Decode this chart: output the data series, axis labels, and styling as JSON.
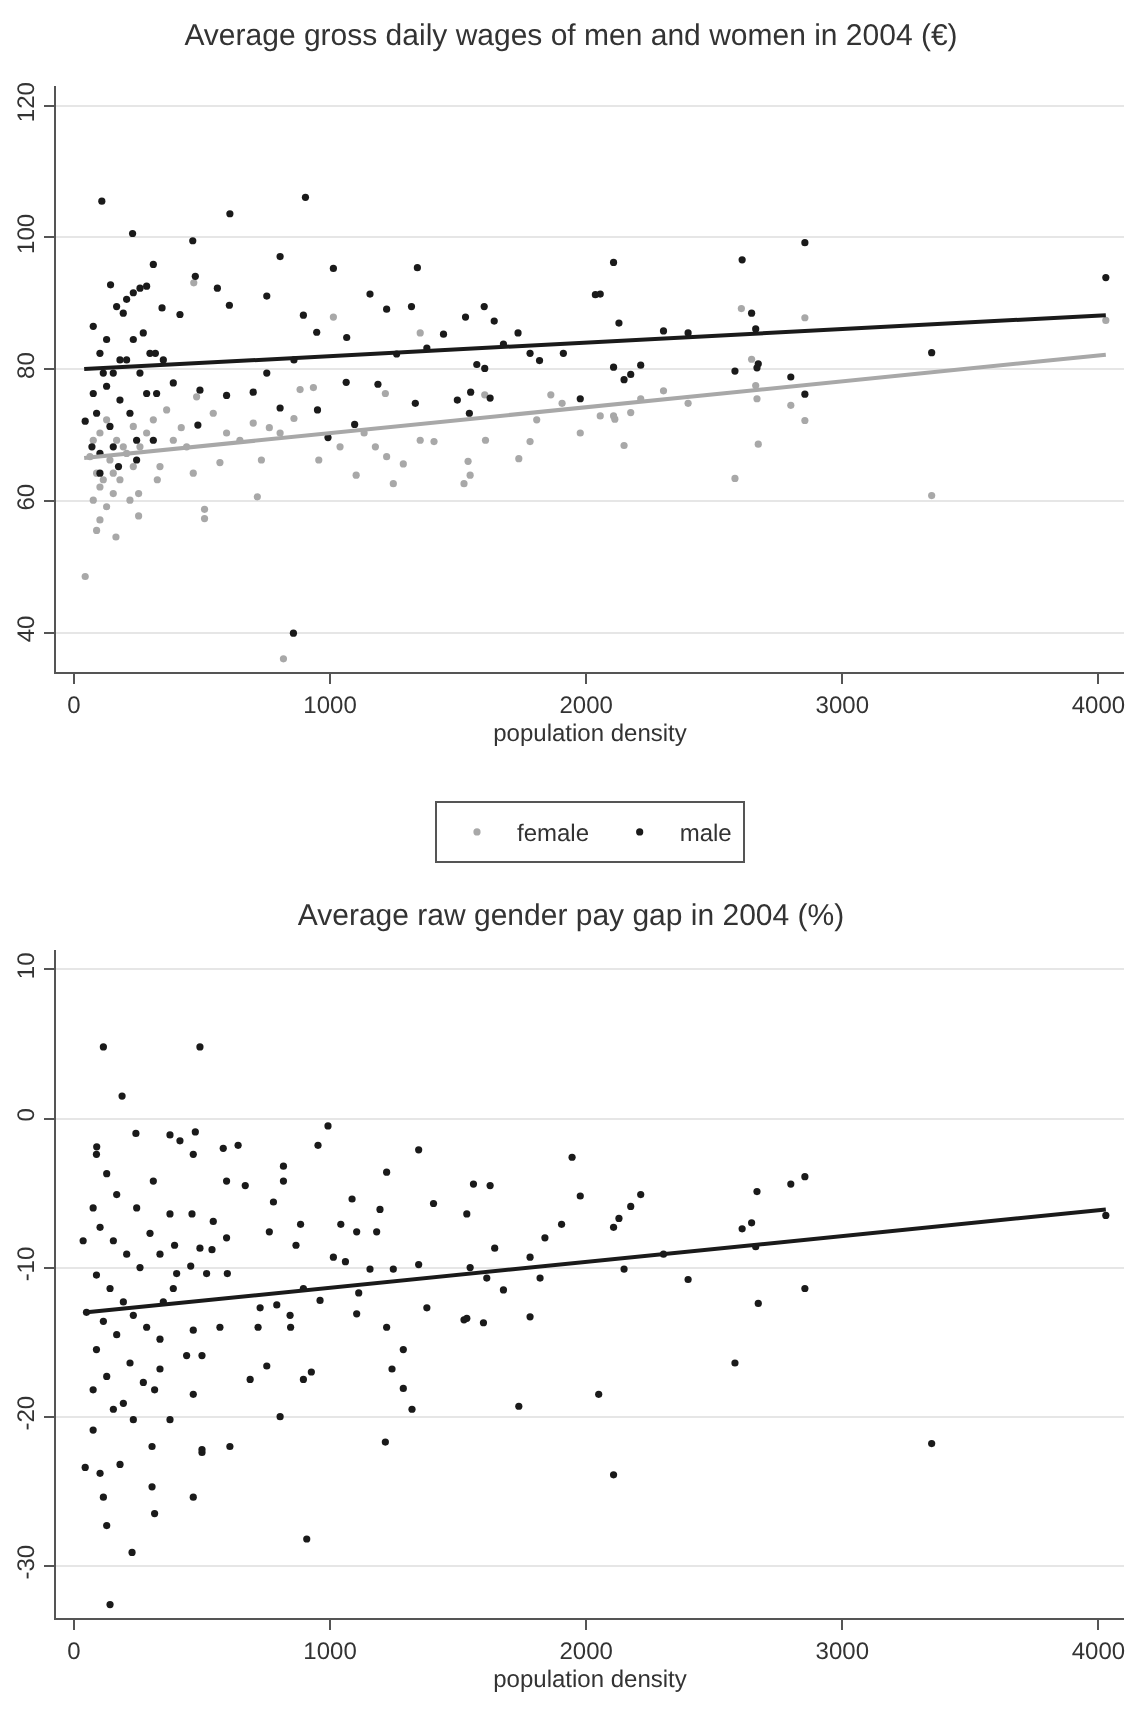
{
  "chart_data": [
    {
      "type": "scatter",
      "title": "Average gross daily wages of men and women in 2004 (€)",
      "xlabel": "population density",
      "marker": "circle",
      "grid": "y",
      "legend": "bottom",
      "xlim": [
        -70,
        4100
      ],
      "xticks": [
        0,
        1000,
        2000,
        3000,
        4000
      ],
      "ylim": [
        34,
        123
      ],
      "yticks": [
        40,
        60,
        80,
        100,
        120
      ],
      "series": [
        {
          "name": "female",
          "color": "#a8a8a8",
          "x": [
            44,
            164,
            88.5,
            101.6,
            127.6,
            75.5,
            153.6,
            114.6,
            179.7,
            88.5,
            231.8,
            140.6,
            62.5,
            205.7,
            257.8,
            166.7,
            101.6,
            283.9,
            310,
            362,
            252.6,
            252.6,
            325.5,
            466,
            510,
            510,
            440,
            419,
            479,
            468,
            570,
            596,
            716,
            648,
            732,
            763,
            805,
            818,
            859,
            956,
            1013,
            1039,
            1102,
            1177,
            1247,
            1286,
            1221,
            1133,
            935,
            1216,
            1352,
            1352,
            1406,
            1523,
            1547,
            1539,
            1607,
            1604,
            1737,
            1781,
            1807,
            1862,
            1906,
            1977,
            75.5,
            127.6,
            192.7,
            231.8,
            153.6,
            218.8,
            101.6,
            336,
            388,
            544,
            883,
            700,
            2606,
            2854,
            2646,
            2662,
            2667,
            2302,
            2398,
            2107,
            2112,
            2055,
            2174,
            2213,
            2148,
            2581,
            2672,
            2799,
            2854,
            3349,
            4029
          ],
          "values": [
            48.5,
            54.5,
            55.5,
            57.1,
            59.1,
            60.1,
            61.1,
            63.2,
            63.2,
            64.2,
            65.2,
            66.2,
            66.7,
            67.2,
            68.2,
            69.2,
            70.3,
            70.3,
            72.3,
            73.8,
            57.7,
            61.1,
            63.2,
            64.2,
            58.7,
            57.3,
            68.2,
            71.1,
            75.8,
            93.1,
            65.8,
            70.3,
            60.6,
            69.2,
            66.2,
            71.1,
            70.3,
            36,
            72.5,
            66.2,
            87.9,
            68.2,
            63.9,
            68.2,
            62.6,
            65.6,
            66.7,
            70.3,
            77.2,
            76.3,
            85.5,
            69.2,
            69,
            62.6,
            63.9,
            66,
            69.2,
            76.1,
            66.4,
            69,
            72.3,
            76.1,
            74.8,
            70.3,
            69.2,
            72.3,
            68.2,
            71.3,
            64.2,
            60.1,
            62.1,
            65.2,
            69.2,
            73.3,
            76.9,
            71.8,
            89.2,
            87.8,
            81.5,
            77.5,
            75.5,
            76.7,
            74.8,
            72.9,
            72.4,
            72.9,
            73.4,
            75.5,
            68.4,
            63.4,
            68.6,
            74.5,
            72.2,
            60.8,
            87.4
          ]
        },
        {
          "name": "male",
          "color": "#1a1a1a",
          "x": [
            109,
            229,
            609,
            904,
            805,
            464,
            310,
            474,
            1013,
            1341,
            1156,
            560,
            143,
            258,
            753,
            896,
            1221,
            1318,
            1529,
            1602,
            1641,
            1734,
            1065,
            607,
            414,
            344,
            948,
            1378,
            1677,
            1781,
            1818,
            1911,
            1977,
            2036,
            1333,
            1260,
            1187,
            1063,
            1096,
            992,
            951,
            859,
            753,
            805,
            700,
            596,
            492,
            484,
            388,
            318,
            310,
            174,
            1443,
            1497,
            1549,
            1544,
            1573,
            1604,
            1625,
            857,
            44,
            75.5,
            101.6,
            114.6,
            127.6,
            88.5,
            140.6,
            153.6,
            101.6,
            179.7,
            205.7,
            231.8,
            257.8,
            283.9,
            166.7,
            127.6,
            192.7,
            244.8,
            270.8,
            218.8,
            244.8,
            75.5,
            70.3,
            101.6,
            153.6,
            179.7,
            296.9,
            322.9,
            349,
            205.7,
            231.8,
            283.9,
            2055,
            2107,
            2128,
            2302,
            2398,
            2609,
            2646,
            2662,
            2854,
            2107,
            2148,
            2174,
            2213,
            2581,
            2672,
            2667,
            2799,
            2854,
            3349,
            4029
          ],
          "values": [
            105.5,
            100.6,
            103.6,
            106.1,
            97.1,
            99.5,
            95.9,
            94.1,
            95.3,
            95.4,
            91.4,
            92.3,
            92.8,
            92.3,
            91.1,
            88.2,
            89.1,
            89.5,
            87.9,
            89.5,
            87.3,
            85.5,
            84.8,
            89.7,
            88.3,
            89.3,
            85.6,
            83.2,
            83.8,
            82.4,
            81.3,
            82.4,
            75.5,
            91.3,
            74.8,
            82.3,
            77.7,
            78,
            71.6,
            69.6,
            73.8,
            81.4,
            79.4,
            74.1,
            76.5,
            76,
            76.8,
            71.5,
            77.9,
            82.4,
            69.2,
            65.2,
            85.3,
            75.3,
            76.5,
            73.3,
            80.7,
            80.1,
            75.6,
            39.9,
            72.1,
            86.5,
            82.4,
            79.4,
            77.4,
            73.3,
            71.3,
            68.2,
            67.2,
            75.3,
            81.4,
            84.5,
            79.4,
            76.3,
            89.5,
            84.5,
            88.5,
            69.2,
            85.5,
            73.3,
            66.2,
            76.3,
            68.2,
            64.2,
            79.4,
            81.4,
            82.4,
            76.3,
            81.4,
            90.6,
            91.6,
            92.6,
            91.4,
            96.2,
            87,
            85.8,
            85.5,
            96.6,
            88.5,
            86.1,
            99.2,
            80.3,
            78.4,
            79.2,
            80.6,
            79.7,
            80.8,
            80.2,
            78.8,
            76.2,
            82.5,
            93.9
          ]
        },
        {
          "type": "line",
          "marker": "none",
          "color": "#a8a8a8",
          "x": [
            40,
            4029
          ],
          "values": [
            66.5,
            82.2
          ]
        },
        {
          "type": "line",
          "marker": "none",
          "color": "#1a1a1a",
          "x": [
            40,
            4029
          ],
          "values": [
            80,
            88.2
          ]
        }
      ]
    },
    {
      "type": "scatter",
      "title": "Average raw gender pay gap in 2004 (%)",
      "xlabel": "population density",
      "marker": "circle",
      "grid": "y",
      "xlim": [
        -70,
        4100
      ],
      "xticks": [
        0,
        1000,
        2000,
        3000,
        4000
      ],
      "ylim": [
        -33.5,
        11.3
      ],
      "yticks": [
        -30,
        -20,
        -10,
        0,
        10
      ],
      "series": [
        {
          "color": "#1a1a1a",
          "x": [
            115,
            492,
            188,
            242,
            89,
            375,
            414,
            466,
            474,
            583,
            641,
            992,
            953,
            1346,
            1221,
            818,
            669,
            596,
            818,
            779,
            1086,
            1195,
            1404,
            1560,
            1625,
            1534,
            1945,
            1977,
            1904,
            1839,
            1781,
            375,
            461,
            544,
            393,
            492,
            596,
            763,
            885,
            867,
            1042,
            1104,
            1182,
            1013,
            1060,
            1156,
            1247,
            1346,
            1547,
            1612,
            1643,
            1677,
            1820,
            401,
            518,
            599,
            456,
            539,
            388,
            896,
            961,
            792,
            727,
            1112,
            1104,
            1378,
            1523,
            1534,
            1599,
            1781,
            719,
            846,
            844,
            570,
            466,
            336,
            1221,
            1286,
            1242,
            1286,
            1320,
            1216,
            1737,
            2049,
            896,
            927,
            753,
            805,
            688,
            909,
            609,
            500,
            500,
            375,
            466,
            440,
            500,
            336,
            315,
            305,
            315,
            305,
            227,
            466,
            141,
            128,
            115,
            102,
            44,
            75,
            180,
            232,
            88,
            128,
            167,
            75,
            102,
            154,
            206,
            258,
            88,
            141,
            193,
            49,
            232,
            115,
            167,
            88,
            219,
            128,
            271,
            75,
            193,
            154,
            284,
            297,
            336,
            349,
            245,
            310,
            36,
            2107,
            2128,
            2174,
            2213,
            2148,
            2302,
            2398,
            2107,
            2581,
            2609,
            2646,
            2667,
            2662,
            2672,
            2799,
            2854,
            2854,
            3349,
            4029
          ],
          "values": [
            4.8,
            4.8,
            1.5,
            -1,
            -1.9,
            -1.1,
            -1.5,
            -2.4,
            -0.9,
            -2,
            -1.8,
            -0.5,
            -1.8,
            -2.1,
            -3.6,
            -3.2,
            -4.5,
            -4.2,
            -4.2,
            -5.6,
            -5.4,
            -6.1,
            -5.7,
            -4.4,
            -4.5,
            -6.4,
            -2.6,
            -5.2,
            -7.1,
            -8,
            -9.3,
            -6.4,
            -6.4,
            -6.9,
            -8.5,
            -8.7,
            -8,
            -7.6,
            -7.1,
            -8.5,
            -7.1,
            -7.6,
            -7.6,
            -9.3,
            -9.6,
            -10.1,
            -10.1,
            -9.8,
            -10,
            -10.7,
            -8.7,
            -11.5,
            -10.7,
            -10.4,
            -10.4,
            -10.4,
            -9.9,
            -8.8,
            -11.4,
            -11.4,
            -12.2,
            -12.5,
            -12.7,
            -11.7,
            -13.1,
            -12.7,
            -13.5,
            -13.4,
            -13.7,
            -13.3,
            -14,
            -14,
            -13.2,
            -14,
            -14.2,
            -14.8,
            -14,
            -15.5,
            -16.8,
            -18.1,
            -19.5,
            -21.7,
            -19.3,
            -18.5,
            -17.5,
            -17,
            -16.6,
            -20,
            -17.5,
            -28.2,
            -22,
            -22.4,
            -22.2,
            -20.2,
            -18.5,
            -15.9,
            -15.9,
            -16.8,
            -18.2,
            -22,
            -26.5,
            -24.7,
            -29.1,
            -25.4,
            -32.6,
            -27.3,
            -25.4,
            -23.8,
            -23.4,
            -20.9,
            -23.2,
            -20.2,
            -2.4,
            -3.7,
            -5.1,
            -6,
            -7.3,
            -8.2,
            -9.1,
            -10,
            -10.5,
            -11.4,
            -12.3,
            -13,
            -13.2,
            -13.6,
            -14.5,
            -15.5,
            -16.4,
            -17.3,
            -17.7,
            -18.2,
            -19.1,
            -19.5,
            -14,
            -7.7,
            -9.1,
            -12.3,
            -6,
            -4.2,
            -8.2,
            -7.3,
            -6.7,
            -5.9,
            -5.1,
            -10.1,
            -9.1,
            -10.8,
            -23.9,
            -16.4,
            -7.4,
            -7,
            -4.9,
            -8.6,
            -12.4,
            -4.4,
            -3.9,
            -11.4,
            -21.8,
            -6.5
          ]
        },
        {
          "type": "line",
          "marker": "none",
          "color": "#1a1a1a",
          "x": [
            50,
            4029
          ],
          "values": [
            -13,
            -6.1
          ]
        }
      ]
    }
  ]
}
